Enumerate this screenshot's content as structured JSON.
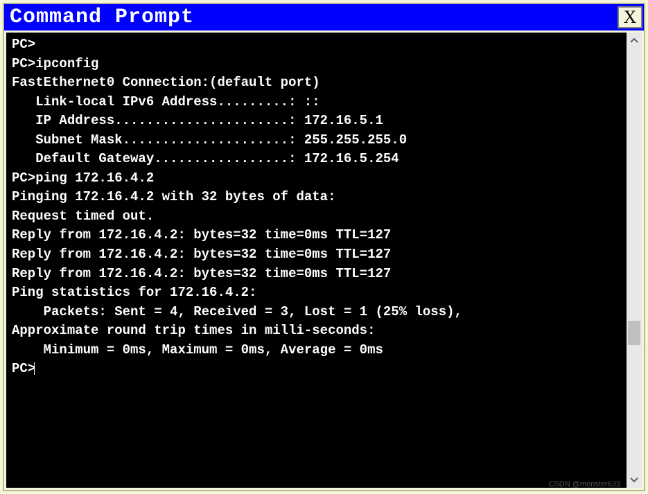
{
  "window": {
    "title": "Command Prompt",
    "close_label": "X"
  },
  "colors": {
    "title_bg": "#0000ff",
    "title_fg": "#ffffff",
    "terminal_bg": "#000000",
    "terminal_fg": "#ffffff",
    "window_bg": "#f5f5dc"
  },
  "terminal": {
    "lines": [
      "PC>",
      "PC>ipconfig",
      "",
      "FastEthernet0 Connection:(default port)",
      "",
      "   Link-local IPv6 Address.........: ::",
      "   IP Address......................: 172.16.5.1",
      "   Subnet Mask.....................: 255.255.255.0",
      "   Default Gateway.................: 172.16.5.254",
      "",
      "PC>ping 172.16.4.2",
      "",
      "Pinging 172.16.4.2 with 32 bytes of data:",
      "",
      "Request timed out.",
      "Reply from 172.16.4.2: bytes=32 time=0ms TTL=127",
      "Reply from 172.16.4.2: bytes=32 time=0ms TTL=127",
      "Reply from 172.16.4.2: bytes=32 time=0ms TTL=127",
      "",
      "Ping statistics for 172.16.4.2:",
      "    Packets: Sent = 4, Received = 3, Lost = 1 (25% loss),",
      "Approximate round trip times in milli-seconds:",
      "    Minimum = 0ms, Maximum = 0ms, Average = 0ms",
      "",
      "PC>"
    ]
  },
  "scrollbar": {
    "arrow_up": "⌃",
    "arrow_down": "⌄"
  },
  "watermark": "CSDN @monster633"
}
